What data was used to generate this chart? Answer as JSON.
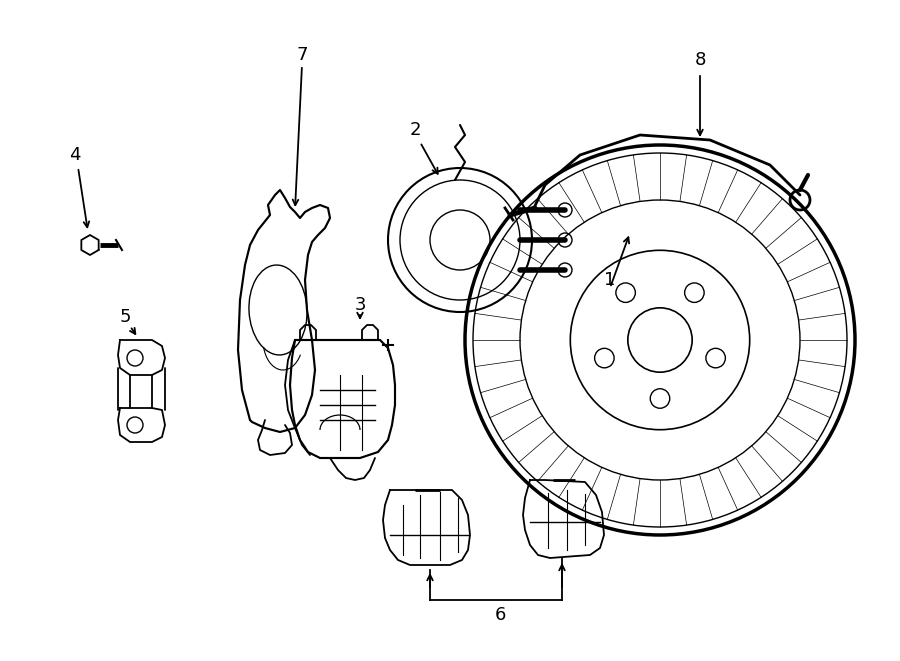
{
  "background_color": "#ffffff",
  "line_color": "#000000",
  "figsize": [
    9.0,
    6.61
  ],
  "dpi": 100,
  "lw": 1.3
}
